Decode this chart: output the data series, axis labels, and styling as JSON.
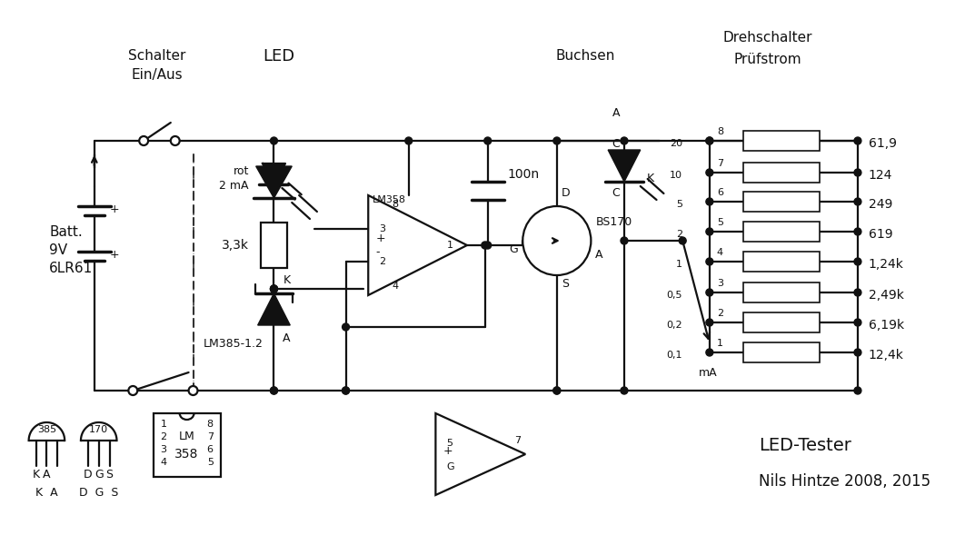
{
  "background_color": "#ffffff",
  "lc": "#111111",
  "lw": 1.6,
  "lw_thin": 1.2,
  "lw_thick": 2.5,
  "fig_w": 10.73,
  "fig_h": 6.0,
  "dpi": 100,
  "xmax": 1073,
  "ymax": 600,
  "labels": {
    "schalter1": "Schalter",
    "schalter2": "Ein/Aus",
    "led_label": "LED",
    "buchsen": "Buchsen",
    "drehschalter1": "Drehschalter",
    "drehschalter2": "Prüfstrom",
    "batt1": "Batt.",
    "batt2": "9V",
    "batt3": "6LR61",
    "rot_label": "rot",
    "ma_label": "2 mA",
    "rk_label": "3,3k",
    "lm358_label": "LM358",
    "lm385_label": "LM385-1.2",
    "cap_label": "100n",
    "bs170_label": "BS170",
    "ma_unit": "mA",
    "title": "LED-Tester",
    "author": "Nils Hintze 2008, 2015",
    "k_label": "K",
    "a_label": "A",
    "d_label": "D",
    "g_label": "G",
    "s_label": "S",
    "c_label": "C"
  },
  "sw_positions": [
    [
      8,
      "20",
      "61,9"
    ],
    [
      7,
      "10",
      "124"
    ],
    [
      6,
      "5",
      "249"
    ],
    [
      5,
      "2",
      "619"
    ],
    [
      4,
      "1",
      "1,24k"
    ],
    [
      3,
      "0,5",
      "2,49k"
    ],
    [
      2,
      "0,2",
      "6,19k"
    ],
    [
      1,
      "0,1",
      "12,4k"
    ]
  ]
}
